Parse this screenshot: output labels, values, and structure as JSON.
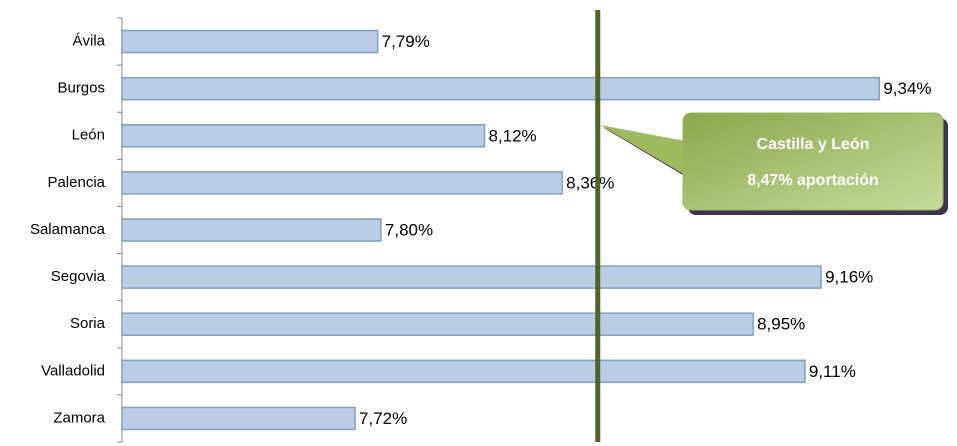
{
  "chart_data": {
    "type": "hbar",
    "categories": [
      "Ávila",
      "Burgos",
      "León",
      "Palencia",
      "Salamanca",
      "Segovia",
      "Soria",
      "Valladolid",
      "Zamora"
    ],
    "values": [
      7.79,
      9.34,
      8.12,
      8.36,
      7.8,
      9.16,
      8.95,
      9.11,
      7.72
    ],
    "value_labels": [
      "7,79%",
      "9,34%",
      "8,12%",
      "8,36%",
      "7,80%",
      "9,16%",
      "8,95%",
      "9,11%",
      "7,72%"
    ],
    "color": "#b9cde5",
    "xlim": [
      7,
      9.58
    ],
    "reference_line": {
      "value": 8.47,
      "color": "#4f6228",
      "title": "Castilla y León",
      "label": "8,47% aportación"
    }
  }
}
